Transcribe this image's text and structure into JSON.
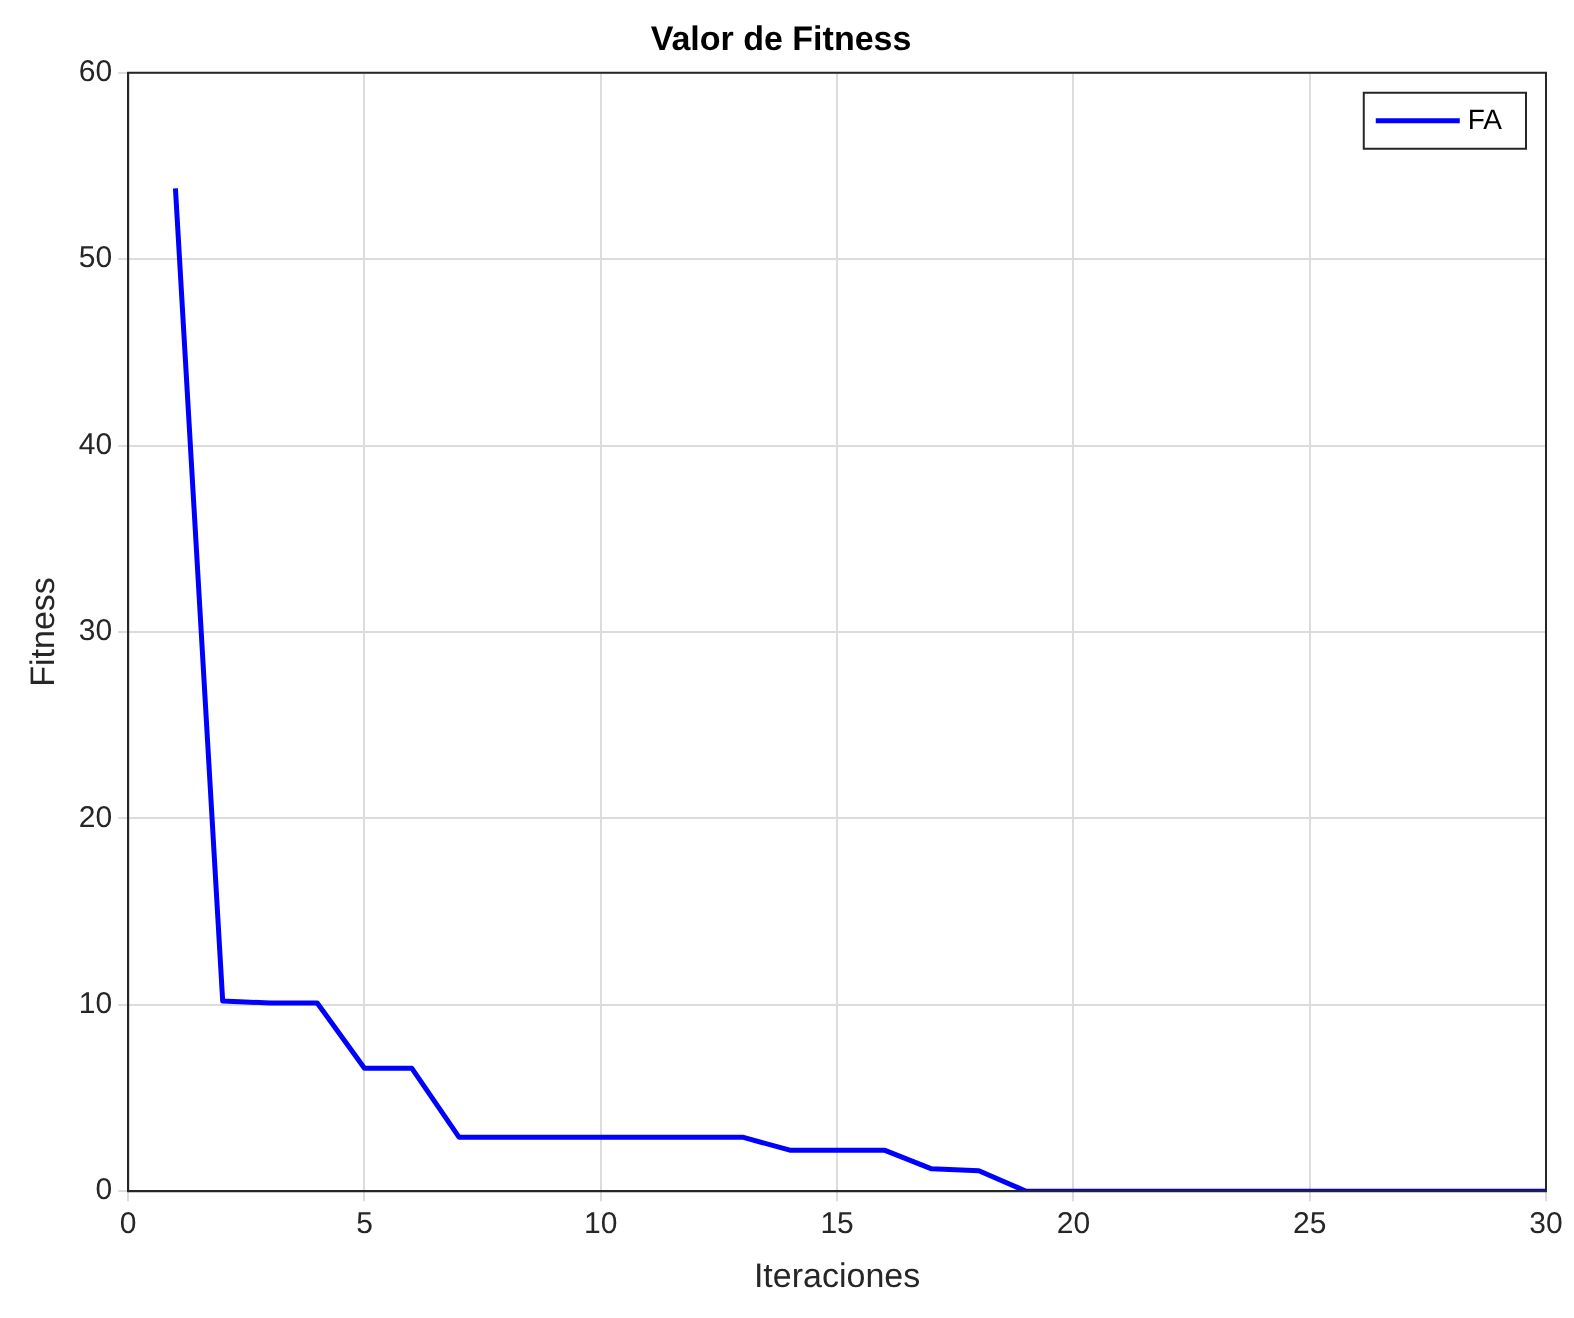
{
  "chart_data": {
    "type": "line",
    "title": "Valor de Fitness",
    "xlabel": "Iteraciones",
    "ylabel": "Fitness",
    "x": [
      1,
      2,
      3,
      4,
      5,
      6,
      7,
      8,
      9,
      10,
      11,
      12,
      13,
      14,
      15,
      16,
      17,
      18,
      19,
      20,
      21,
      22,
      23,
      24,
      25,
      26,
      27,
      28,
      29,
      30
    ],
    "series": [
      {
        "name": "FA",
        "color": "#0000ff",
        "values": [
          53.8,
          10.2,
          10.1,
          10.1,
          6.6,
          6.6,
          2.9,
          2.9,
          2.9,
          2.9,
          2.9,
          2.9,
          2.9,
          2.2,
          2.2,
          2.2,
          1.2,
          1.1,
          0,
          0,
          0,
          0,
          0,
          0,
          0,
          0,
          0,
          0,
          0,
          0
        ]
      }
    ],
    "xlim": [
      0,
      30
    ],
    "xticks": [
      0,
      5,
      10,
      15,
      20,
      25,
      30
    ],
    "ylim": [
      0,
      60
    ],
    "yticks": [
      0,
      10,
      20,
      30,
      40,
      50,
      60
    ],
    "grid": true,
    "legend": "top right",
    "marker": "none",
    "line_style": "solid"
  }
}
